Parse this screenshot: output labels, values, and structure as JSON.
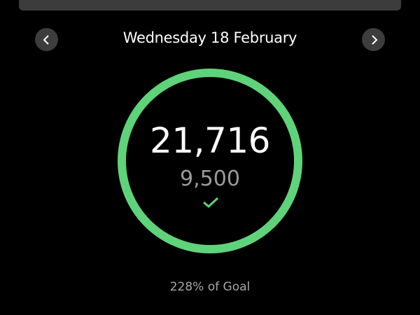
{
  "header": {
    "date": "Wednesday 18 February",
    "prev_icon": "chevron-left-icon",
    "next_icon": "chevron-right-icon"
  },
  "progress": {
    "steps": "21,716",
    "goal": "9,500",
    "goal_met_icon": "check-icon",
    "percent_text": "228% of Goal",
    "ring_fill_fraction": 1.0,
    "ring_color": "#5fd37a"
  }
}
